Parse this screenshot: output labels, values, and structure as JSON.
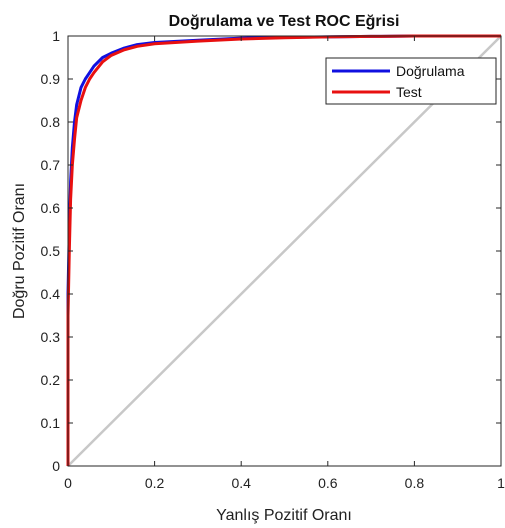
{
  "chart_data": {
    "type": "line",
    "title": "Doğrulama ve Test ROC Eğrisi",
    "xlabel": "Yanlış Pozitif Oranı",
    "ylabel": "Doğru Pozitif Oranı",
    "xlim": [
      0,
      1
    ],
    "ylim": [
      0,
      1
    ],
    "xticks": [
      "0",
      "0.2",
      "0.4",
      "0.6",
      "0.8",
      "1"
    ],
    "yticks": [
      "0",
      "0.1",
      "0.2",
      "0.3",
      "0.4",
      "0.5",
      "0.6",
      "0.7",
      "0.8",
      "0.9",
      "1"
    ],
    "grid": false,
    "legend_position": "top-right",
    "diagonal_reference": true,
    "series": [
      {
        "name": "Doğrulama",
        "color": "#1010e0",
        "x": [
          0,
          0,
          0.003,
          0.006,
          0.01,
          0.015,
          0.02,
          0.03,
          0.04,
          0.05,
          0.06,
          0.08,
          0.1,
          0.13,
          0.16,
          0.2,
          0.3,
          0.4,
          0.5,
          0.6,
          0.7,
          0.8,
          0.9,
          1
        ],
        "y": [
          0,
          0.4,
          0.55,
          0.66,
          0.74,
          0.8,
          0.84,
          0.88,
          0.9,
          0.915,
          0.93,
          0.95,
          0.96,
          0.972,
          0.98,
          0.985,
          0.99,
          0.995,
          0.997,
          0.998,
          0.999,
          1,
          1,
          1
        ]
      },
      {
        "name": "Test",
        "color": "#e81010",
        "x": [
          0,
          0,
          0.003,
          0.006,
          0.01,
          0.015,
          0.02,
          0.03,
          0.04,
          0.05,
          0.06,
          0.08,
          0.1,
          0.13,
          0.16,
          0.2,
          0.3,
          0.4,
          0.5,
          0.6,
          0.7,
          0.8,
          0.9,
          1
        ],
        "y": [
          0,
          0.35,
          0.5,
          0.62,
          0.7,
          0.76,
          0.81,
          0.85,
          0.88,
          0.9,
          0.915,
          0.94,
          0.955,
          0.968,
          0.976,
          0.982,
          0.988,
          0.993,
          0.996,
          0.998,
          0.999,
          1,
          1,
          1
        ]
      }
    ]
  }
}
